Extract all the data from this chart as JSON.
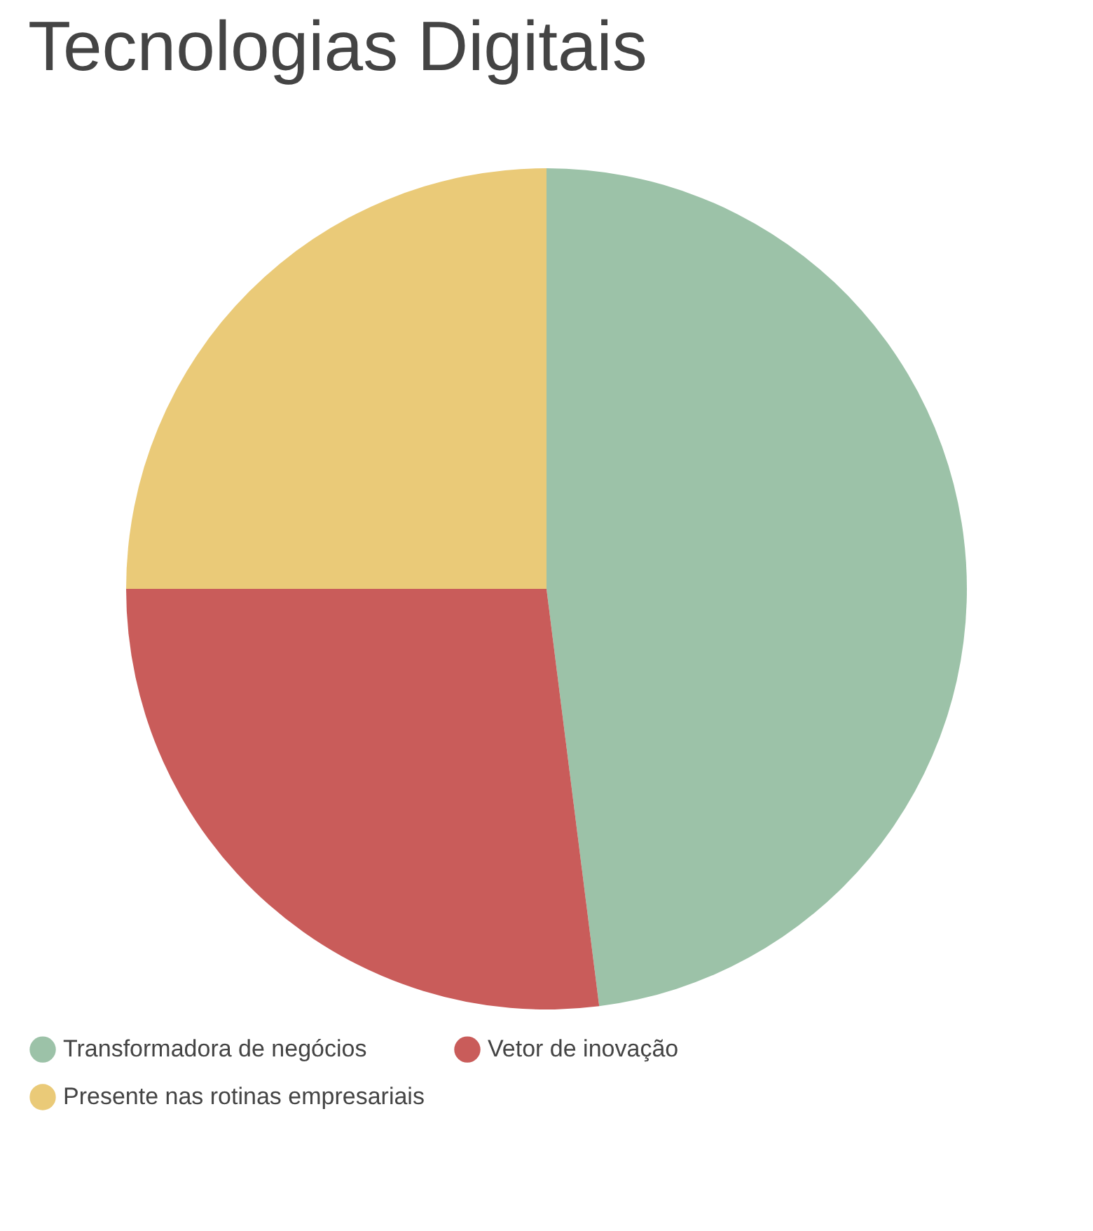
{
  "chart_data": {
    "type": "pie",
    "title": "Tecnologias Digitais",
    "categories": [
      "Transformadora de negócios",
      "Vetor de inovação",
      "Presente nas rotinas empresariais"
    ],
    "values": [
      48,
      27,
      25
    ],
    "colors": [
      "#9cc2a8",
      "#c95c5a",
      "#eaca78"
    ],
    "legend": "bottom"
  }
}
